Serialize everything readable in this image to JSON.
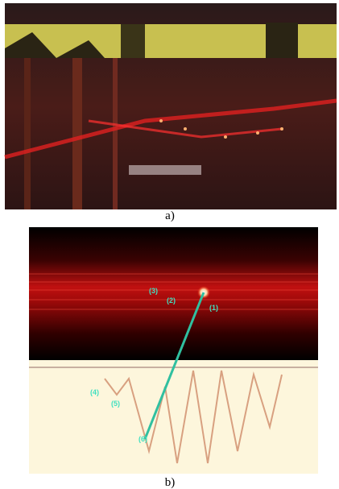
{
  "figure": {
    "panels": [
      {
        "caption": "a)"
      },
      {
        "caption": "b)",
        "labels": [
          "(3)",
          "(2)",
          "(1)",
          "(4)",
          "(5)",
          "(6)"
        ]
      }
    ]
  }
}
